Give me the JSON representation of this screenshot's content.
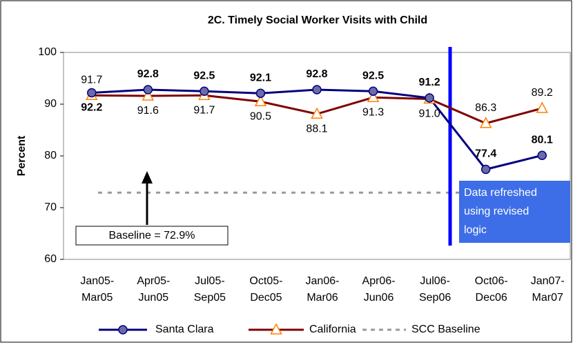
{
  "chart_data": {
    "type": "line",
    "title": "2C. Timely Social Worker Visits with Child",
    "y_label": "Percent",
    "categories": [
      [
        "Jan05-",
        "Mar05"
      ],
      [
        "Apr05-",
        "Jun05"
      ],
      [
        "Jul05-",
        "Sep05"
      ],
      [
        "Oct05-",
        "Dec05"
      ],
      [
        "Jan06-",
        "Mar06"
      ],
      [
        "Apr06-",
        "Jun06"
      ],
      [
        "Jul06-",
        "Sep06"
      ],
      [
        "Oct06-",
        "Dec06"
      ],
      [
        "Jan07-",
        "Mar07"
      ]
    ],
    "series": [
      {
        "name": "Santa Clara",
        "color": "#000080",
        "marker_color": "#6b6ba6",
        "values": [
          92.2,
          92.8,
          92.5,
          92.1,
          92.8,
          92.5,
          91.2,
          77.4,
          80.1
        ]
      },
      {
        "name": "California",
        "color": "#800000",
        "marker_color": "#ff8000",
        "values": [
          91.7,
          91.6,
          91.7,
          90.5,
          88.1,
          91.3,
          91.0,
          86.3,
          89.2
        ],
        "value_labels": [
          "91.7",
          "91.6",
          "91.7",
          "90.5",
          "88.1",
          "91.3",
          "91.0",
          "86.3",
          "89.2"
        ]
      }
    ],
    "baseline": {
      "name": "SCC Baseline",
      "value": 72.9,
      "color": "#999999"
    },
    "annotations": [
      "Baseline = 72.9%",
      [
        "Data refreshed",
        "using revised",
        "logic"
      ]
    ],
    "ylim": [
      60,
      100
    ],
    "yticks": [
      60,
      70,
      80,
      90,
      100
    ],
    "grid": false
  }
}
